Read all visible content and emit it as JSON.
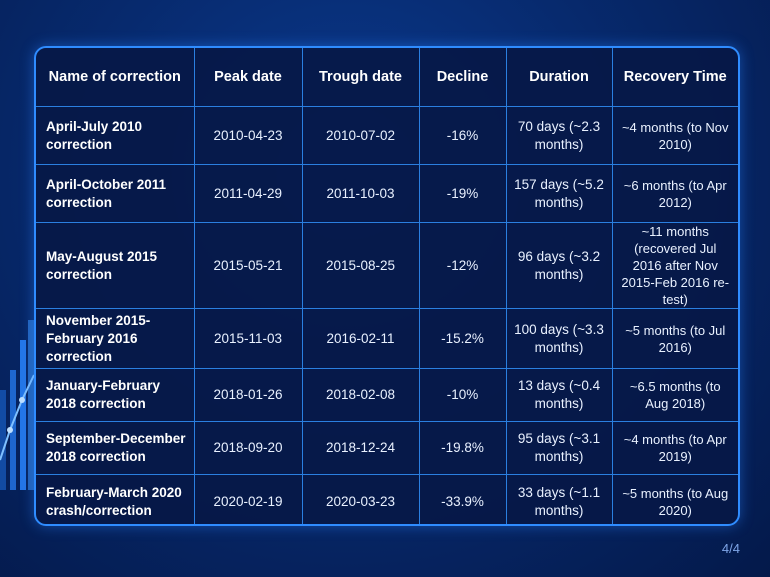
{
  "table": {
    "headers": [
      "Name of correction",
      "Peak date",
      "Trough date",
      "Decline",
      "Duration",
      "Recovery Time"
    ],
    "rows": [
      {
        "name": "April-July 2010 correction",
        "peak": "2010-04-23",
        "trough": "2010-07-02",
        "decline": "-16%",
        "duration": "70 days (~2.3 months)",
        "recovery": "~4 months (to Nov 2010)"
      },
      {
        "name": "April-October 2011 correction",
        "peak": "2011-04-29",
        "trough": "2011-10-03",
        "decline": "-19%",
        "duration": "157 days (~5.2 months)",
        "recovery": "~6 months (to Apr 2012)"
      },
      {
        "name": "May-August 2015 correction",
        "peak": "2015-05-21",
        "trough": "2015-08-25",
        "decline": "-12%",
        "duration": "96 days (~3.2 months)",
        "recovery": "~11 months (recovered Jul 2016 after Nov 2015-Feb 2016 re-test)"
      },
      {
        "name": "November 2015-February 2016 correction",
        "peak": "2015-11-03",
        "trough": "2016-02-11",
        "decline": "-15.2%",
        "duration": "100 days (~3.3 months)",
        "recovery": "~5 months (to Jul 2016)"
      },
      {
        "name": "January-February 2018 correction",
        "peak": "2018-01-26",
        "trough": "2018-02-08",
        "decline": "-10%",
        "duration": "13 days (~0.4 months)",
        "recovery": "~6.5 months (to Aug 2018)"
      },
      {
        "name": "September-December 2018 correction",
        "peak": "2018-09-20",
        "trough": "2018-12-24",
        "decline": "-19.8%",
        "duration": "95 days (~3.1 months)",
        "recovery": "~4 months (to Apr 2019)"
      },
      {
        "name": "February-March 2020 crash/correction",
        "peak": "2020-02-19",
        "trough": "2020-03-23",
        "decline": "-33.9%",
        "duration": "33 days (~1.1 months)",
        "recovery": "~5 months (to Aug 2020)"
      }
    ]
  },
  "page_number": "4/4",
  "colors": {
    "background": "#072a6e",
    "table_border": "#2f8cff",
    "text": "#ffffff",
    "page_number": "#7fa6e8"
  },
  "icons": [
    "decorative-bar-chart-icon"
  ]
}
